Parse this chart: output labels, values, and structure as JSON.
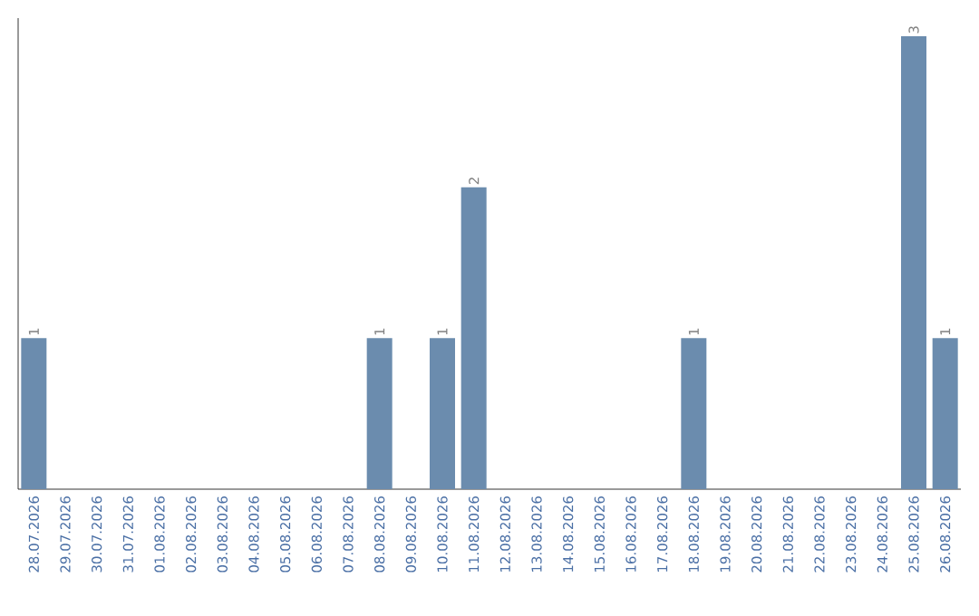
{
  "chart_data": {
    "type": "bar",
    "categories": [
      "28.07.2026",
      "29.07.2026",
      "30.07.2026",
      "31.07.2026",
      "01.08.2026",
      "02.08.2026",
      "03.08.2026",
      "04.08.2026",
      "05.08.2026",
      "06.08.2026",
      "07.08.2026",
      "08.08.2026",
      "09.08.2026",
      "10.08.2026",
      "11.08.2026",
      "12.08.2026",
      "13.08.2026",
      "14.08.2026",
      "15.08.2026",
      "16.08.2026",
      "17.08.2026",
      "18.08.2026",
      "19.08.2026",
      "20.08.2026",
      "21.08.2026",
      "22.08.2026",
      "23.08.2026",
      "24.08.2026",
      "25.08.2026",
      "26.08.2026"
    ],
    "values": [
      1,
      0,
      0,
      0,
      0,
      0,
      0,
      0,
      0,
      0,
      0,
      1,
      0,
      1,
      2,
      0,
      0,
      0,
      0,
      0,
      0,
      1,
      0,
      0,
      0,
      0,
      0,
      0,
      3,
      1
    ],
    "value_labels": [
      "1",
      null,
      null,
      null,
      null,
      null,
      null,
      null,
      null,
      null,
      null,
      "1",
      null,
      "1",
      "2",
      null,
      null,
      null,
      null,
      null,
      null,
      "1",
      null,
      null,
      null,
      null,
      null,
      null,
      "3",
      "1"
    ],
    "color": "#6b8cae"
  }
}
